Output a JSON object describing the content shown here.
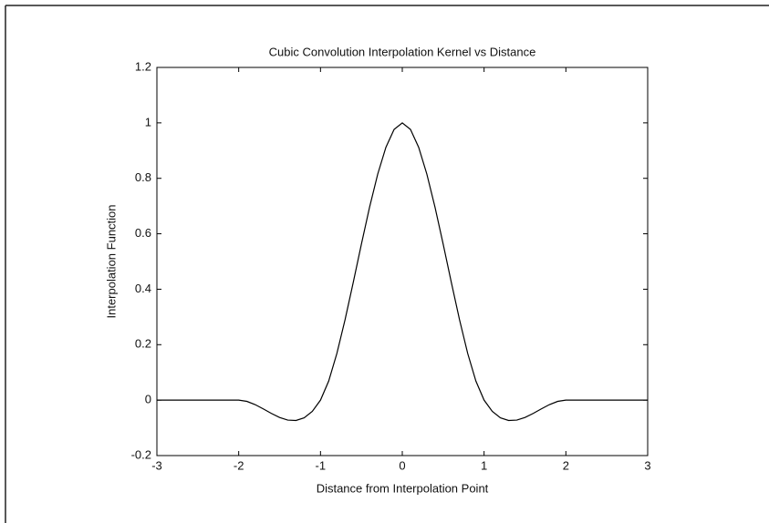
{
  "chart_data": {
    "type": "line",
    "title": "Cubic Convolution Interpolation Kernel vs Distance",
    "x_label": "Distance from Interpolation Point",
    "y_label": "Interpolation Function",
    "x": [
      -3,
      -2.9,
      -2.8,
      -2.7,
      -2.6,
      -2.5,
      -2.4,
      -2.3,
      -2.2,
      -2.1,
      -2,
      -1.9,
      -1.8,
      -1.7,
      -1.6,
      -1.5,
      -1.4,
      -1.3,
      -1.2,
      -1.1,
      -1,
      -0.9,
      -0.8,
      -0.7,
      -0.6,
      -0.5,
      -0.4,
      -0.3,
      -0.2,
      -0.1,
      0,
      0.1,
      0.2,
      0.3,
      0.4,
      0.5,
      0.6,
      0.7,
      0.8,
      0.9,
      1,
      1.1,
      1.2,
      1.3,
      1.4,
      1.5,
      1.6,
      1.7,
      1.8,
      1.9,
      2,
      2.1,
      2.2,
      2.3,
      2.4,
      2.5,
      2.6,
      2.7,
      2.8,
      2.9,
      3
    ],
    "series": [
      {
        "color": "#000000",
        "values": [
          0,
          0,
          0,
          0,
          0,
          0,
          0,
          0,
          0,
          0,
          0,
          -0.0045,
          -0.016,
          -0.0315,
          -0.048,
          -0.0625,
          -0.072,
          -0.0735,
          -0.064,
          -0.0405,
          0,
          0.0685,
          0.168,
          0.2895,
          0.424,
          0.5625,
          0.696,
          0.8155,
          0.912,
          0.9765,
          1,
          0.9765,
          0.912,
          0.8155,
          0.696,
          0.5625,
          0.424,
          0.2895,
          0.168,
          0.0685,
          0,
          -0.0405,
          -0.064,
          -0.0735,
          -0.072,
          -0.0625,
          -0.048,
          -0.0315,
          -0.016,
          -0.0045,
          0,
          0,
          0,
          0,
          0,
          0,
          0,
          0,
          0,
          0,
          0
        ]
      }
    ],
    "xlim": [
      -3,
      3
    ],
    "xticks": [
      -3,
      -2,
      -1,
      0,
      1,
      2,
      3
    ],
    "ylim": [
      -0.2,
      1.2
    ],
    "yticks": [
      -0.2,
      0,
      0.2,
      0.4,
      0.6,
      0.8,
      1,
      1.2
    ],
    "grid": false
  }
}
